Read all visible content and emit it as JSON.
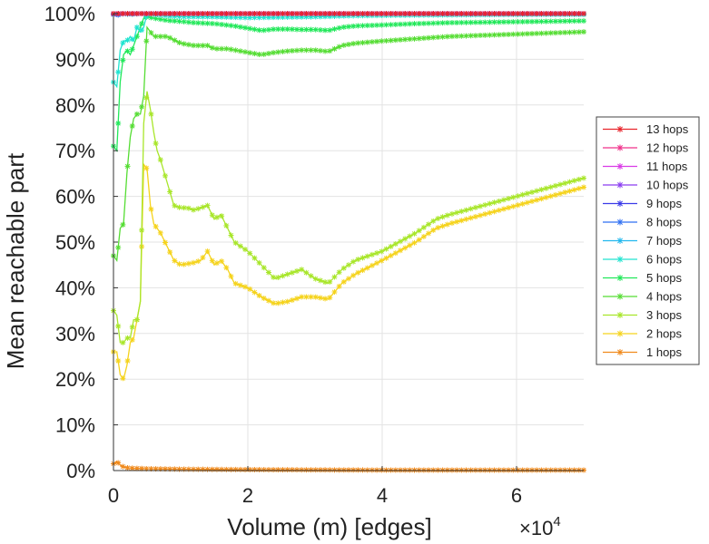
{
  "chart_data": {
    "type": "line",
    "xlabel": "Volume (m) [edges]",
    "ylabel": "Mean reachable part",
    "x_multiplier": "×10",
    "x_multiplier_exponent": "4",
    "xlim": [
      0,
      70000
    ],
    "ylim": [
      0,
      100
    ],
    "xticks": [
      0,
      20000,
      40000,
      60000
    ],
    "xtick_labels": [
      "0",
      "2",
      "4",
      "6"
    ],
    "yticks": [
      0,
      10,
      20,
      30,
      40,
      50,
      60,
      70,
      80,
      90,
      100
    ],
    "ytick_labels": [
      "0%",
      "10%",
      "20%",
      "30%",
      "40%",
      "50%",
      "60%",
      "70%",
      "80%",
      "90%",
      "100%"
    ],
    "grid": true,
    "legend_position": "right",
    "series": [
      {
        "name": "13 hops",
        "color": "#e8242b",
        "points": [
          [
            0,
            100
          ],
          [
            70000,
            100
          ]
        ]
      },
      {
        "name": "12 hops",
        "color": "#f0308a",
        "points": [
          [
            0,
            100
          ],
          [
            70000,
            100
          ]
        ]
      },
      {
        "name": "11 hops",
        "color": "#d93ae6",
        "points": [
          [
            0,
            100
          ],
          [
            70000,
            100
          ]
        ]
      },
      {
        "name": "10 hops",
        "color": "#8a3cf0",
        "points": [
          [
            0,
            100
          ],
          [
            70000,
            100
          ]
        ]
      },
      {
        "name": "9 hops",
        "color": "#3b3be8",
        "points": [
          [
            0,
            100
          ],
          [
            70000,
            100
          ]
        ]
      },
      {
        "name": "8 hops",
        "color": "#2f6ff2",
        "points": [
          [
            0,
            99.8
          ],
          [
            500,
            99.5
          ],
          [
            1000,
            100
          ],
          [
            70000,
            100
          ]
        ]
      },
      {
        "name": "7 hops",
        "color": "#22b8ee",
        "points": [
          [
            0,
            99.9
          ],
          [
            500,
            100
          ],
          [
            1000,
            99.6
          ],
          [
            1500,
            100
          ],
          [
            2500,
            99.8
          ],
          [
            4000,
            100
          ],
          [
            70000,
            100
          ]
        ]
      },
      {
        "name": "6 hops",
        "color": "#20e4d0",
        "points": [
          [
            0,
            85
          ],
          [
            500,
            84
          ],
          [
            1000,
            92
          ],
          [
            1500,
            94
          ],
          [
            2000,
            94
          ],
          [
            2500,
            95
          ],
          [
            3000,
            94
          ],
          [
            3500,
            97
          ],
          [
            4000,
            96
          ],
          [
            4500,
            97
          ],
          [
            5000,
            100
          ],
          [
            8000,
            99.5
          ],
          [
            10000,
            99.3
          ],
          [
            15000,
            99.3
          ],
          [
            20000,
            99.1
          ],
          [
            25000,
            99.2
          ],
          [
            30000,
            99.3
          ],
          [
            35000,
            99.5
          ],
          [
            40000,
            99.6
          ],
          [
            50000,
            99.7
          ],
          [
            60000,
            99.8
          ],
          [
            70000,
            99.8
          ]
        ]
      },
      {
        "name": "5 hops",
        "color": "#22e85a",
        "points": [
          [
            0,
            71
          ],
          [
            500,
            70
          ],
          [
            1000,
            85
          ],
          [
            1500,
            91
          ],
          [
            2000,
            92
          ],
          [
            2500,
            91
          ],
          [
            3000,
            93
          ],
          [
            3500,
            95
          ],
          [
            4000,
            97
          ],
          [
            4500,
            99
          ],
          [
            5000,
            99.3
          ],
          [
            6000,
            99
          ],
          [
            8000,
            98.5
          ],
          [
            10000,
            98.3
          ],
          [
            12000,
            98
          ],
          [
            15000,
            97.8
          ],
          [
            18000,
            97.3
          ],
          [
            20000,
            96.8
          ],
          [
            22000,
            96.3
          ],
          [
            24000,
            96.6
          ],
          [
            26000,
            96.6
          ],
          [
            28000,
            96.5
          ],
          [
            30000,
            96.5
          ],
          [
            32000,
            96.3
          ],
          [
            34000,
            97
          ],
          [
            36000,
            97.3
          ],
          [
            40000,
            97.5
          ],
          [
            45000,
            97.8
          ],
          [
            50000,
            98
          ],
          [
            60000,
            98.2
          ],
          [
            70000,
            98.4
          ]
        ]
      },
      {
        "name": "4 hops",
        "color": "#55dd33",
        "points": [
          [
            0,
            47
          ],
          [
            500,
            46
          ],
          [
            1000,
            53
          ],
          [
            1500,
            54
          ],
          [
            2000,
            65
          ],
          [
            2500,
            73
          ],
          [
            3000,
            77
          ],
          [
            3500,
            78
          ],
          [
            4000,
            78
          ],
          [
            4500,
            82
          ],
          [
            5000,
            97
          ],
          [
            6000,
            95
          ],
          [
            8000,
            95
          ],
          [
            10000,
            93.5
          ],
          [
            12000,
            93
          ],
          [
            14000,
            93
          ],
          [
            15000,
            92.3
          ],
          [
            17000,
            92.3
          ],
          [
            20000,
            91.5
          ],
          [
            22000,
            91
          ],
          [
            24000,
            91.5
          ],
          [
            26000,
            91.8
          ],
          [
            28000,
            92
          ],
          [
            30000,
            92
          ],
          [
            32000,
            91.7
          ],
          [
            34000,
            93
          ],
          [
            36000,
            93.5
          ],
          [
            40000,
            94
          ],
          [
            45000,
            94.5
          ],
          [
            50000,
            95
          ],
          [
            60000,
            95.5
          ],
          [
            70000,
            96
          ]
        ]
      },
      {
        "name": "3 hops",
        "color": "#a8e62a",
        "points": [
          [
            0,
            35
          ],
          [
            500,
            34
          ],
          [
            1000,
            28
          ],
          [
            1500,
            28
          ],
          [
            2000,
            29
          ],
          [
            2500,
            29
          ],
          [
            3000,
            33
          ],
          [
            3500,
            33
          ],
          [
            4000,
            37
          ],
          [
            4500,
            76
          ],
          [
            5000,
            83
          ],
          [
            5500,
            79
          ],
          [
            6000,
            74
          ],
          [
            6500,
            70
          ],
          [
            7000,
            68
          ],
          [
            8000,
            63
          ],
          [
            9000,
            58
          ],
          [
            10000,
            57.5
          ],
          [
            11000,
            57.5
          ],
          [
            12000,
            57
          ],
          [
            13000,
            57.5
          ],
          [
            14000,
            58
          ],
          [
            15000,
            55
          ],
          [
            16000,
            56
          ],
          [
            17000,
            53
          ],
          [
            18000,
            50
          ],
          [
            20000,
            48
          ],
          [
            22000,
            45
          ],
          [
            24000,
            42
          ],
          [
            26000,
            43
          ],
          [
            28000,
            44
          ],
          [
            30000,
            42
          ],
          [
            32000,
            41
          ],
          [
            34000,
            44
          ],
          [
            36000,
            46
          ],
          [
            40000,
            48
          ],
          [
            45000,
            52
          ],
          [
            48000,
            55
          ],
          [
            50000,
            56
          ],
          [
            55000,
            58
          ],
          [
            60000,
            60
          ],
          [
            65000,
            62
          ],
          [
            70000,
            64
          ]
        ]
      },
      {
        "name": "2 hops",
        "color": "#f5d31c",
        "points": [
          [
            0,
            26
          ],
          [
            500,
            26
          ],
          [
            1000,
            21
          ],
          [
            1500,
            20
          ],
          [
            2000,
            23
          ],
          [
            2500,
            28
          ],
          [
            3000,
            29
          ],
          [
            3500,
            33
          ],
          [
            4000,
            37
          ],
          [
            4500,
            67
          ],
          [
            5000,
            66
          ],
          [
            5500,
            58
          ],
          [
            6000,
            54
          ],
          [
            7000,
            52
          ],
          [
            8000,
            49
          ],
          [
            9000,
            46
          ],
          [
            10000,
            45
          ],
          [
            12000,
            45.5
          ],
          [
            13000,
            46
          ],
          [
            14000,
            48
          ],
          [
            15000,
            45
          ],
          [
            16000,
            46
          ],
          [
            17000,
            44
          ],
          [
            18000,
            41
          ],
          [
            20000,
            40
          ],
          [
            22000,
            38
          ],
          [
            24000,
            36.5
          ],
          [
            26000,
            37
          ],
          [
            28000,
            38
          ],
          [
            30000,
            38
          ],
          [
            32000,
            37.5
          ],
          [
            34000,
            41
          ],
          [
            36000,
            43
          ],
          [
            40000,
            46
          ],
          [
            45000,
            50
          ],
          [
            48000,
            53
          ],
          [
            50000,
            54
          ],
          [
            55000,
            56
          ],
          [
            60000,
            58
          ],
          [
            65000,
            60
          ],
          [
            70000,
            62
          ]
        ]
      },
      {
        "name": "1 hops",
        "color": "#f08a1c",
        "points": [
          [
            0,
            1.5
          ],
          [
            500,
            2
          ],
          [
            1000,
            1.2
          ],
          [
            1500,
            0.8
          ],
          [
            2000,
            0.6
          ],
          [
            3000,
            0.5
          ],
          [
            5000,
            0.4
          ],
          [
            10000,
            0.3
          ],
          [
            20000,
            0.2
          ],
          [
            40000,
            0.1
          ],
          [
            70000,
            0.1
          ]
        ]
      }
    ]
  }
}
